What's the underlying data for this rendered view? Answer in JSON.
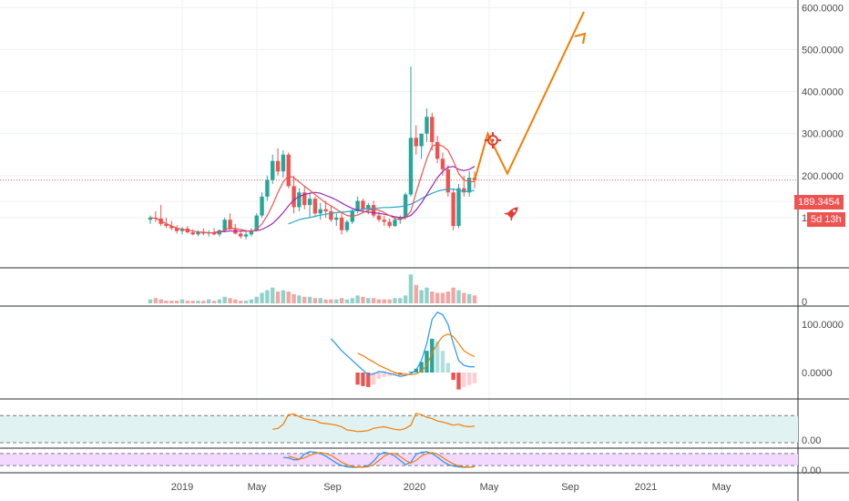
{
  "chart_data": {
    "type": "candlestick",
    "price_scale": {
      "ticks": [
        "100.0000",
        "200.0000",
        "300.0000",
        "400.0000",
        "500.0000",
        "600.0000"
      ],
      "values": [
        100,
        200,
        300,
        400,
        500,
        600
      ],
      "ylim": [
        0,
        650
      ]
    },
    "last_price": {
      "label": "189.3454",
      "value": 189.3454,
      "countdown": "5d 13h",
      "color": "#ef5350"
    },
    "x_ticks": [
      "2019",
      "May",
      "Sep",
      "2020",
      "May",
      "Sep",
      "2021",
      "May"
    ],
    "candles": [
      [
        95,
        105,
        85,
        100
      ],
      [
        100,
        115,
        90,
        98
      ],
      [
        98,
        130,
        80,
        85
      ],
      [
        85,
        100,
        75,
        80
      ],
      [
        80,
        92,
        70,
        75
      ],
      [
        75,
        82,
        62,
        68
      ],
      [
        68,
        78,
        60,
        74
      ],
      [
        74,
        80,
        62,
        65
      ],
      [
        65,
        72,
        58,
        60
      ],
      [
        60,
        70,
        56,
        66
      ],
      [
        66,
        74,
        58,
        62
      ],
      [
        62,
        70,
        55,
        65
      ],
      [
        65,
        75,
        58,
        60
      ],
      [
        60,
        72,
        55,
        70
      ],
      [
        70,
        100,
        65,
        95
      ],
      [
        95,
        110,
        70,
        72
      ],
      [
        72,
        85,
        60,
        62
      ],
      [
        62,
        70,
        50,
        55
      ],
      [
        55,
        68,
        48,
        60
      ],
      [
        60,
        75,
        55,
        70
      ],
      [
        70,
        110,
        68,
        105
      ],
      [
        105,
        160,
        100,
        150
      ],
      [
        150,
        200,
        140,
        190
      ],
      [
        190,
        250,
        180,
        235
      ],
      [
        235,
        265,
        200,
        210
      ],
      [
        210,
        260,
        195,
        250
      ],
      [
        250,
        255,
        170,
        175
      ],
      [
        175,
        200,
        110,
        125
      ],
      [
        125,
        170,
        115,
        160
      ],
      [
        160,
        175,
        120,
        130
      ],
      [
        130,
        160,
        100,
        145
      ],
      [
        145,
        150,
        105,
        110
      ],
      [
        110,
        135,
        95,
        120
      ],
      [
        120,
        140,
        100,
        115
      ],
      [
        115,
        128,
        90,
        95
      ],
      [
        95,
        110,
        80,
        100
      ],
      [
        100,
        112,
        60,
        70
      ],
      [
        70,
        95,
        65,
        90
      ],
      [
        90,
        120,
        85,
        115
      ],
      [
        115,
        150,
        110,
        140
      ],
      [
        140,
        145,
        115,
        120
      ],
      [
        120,
        135,
        108,
        130
      ],
      [
        130,
        140,
        100,
        105
      ],
      [
        105,
        115,
        90,
        95
      ],
      [
        95,
        105,
        80,
        90
      ],
      [
        90,
        98,
        75,
        80
      ],
      [
        80,
        100,
        78,
        95
      ],
      [
        95,
        105,
        85,
        100
      ],
      [
        100,
        160,
        95,
        155
      ],
      [
        155,
        460,
        150,
        290
      ],
      [
        290,
        320,
        250,
        270
      ],
      [
        270,
        300,
        240,
        300
      ],
      [
        300,
        360,
        280,
        340
      ],
      [
        340,
        350,
        260,
        280
      ],
      [
        280,
        295,
        230,
        240
      ],
      [
        240,
        255,
        200,
        215
      ],
      [
        215,
        225,
        150,
        160
      ],
      [
        160,
        170,
        70,
        80
      ],
      [
        80,
        180,
        75,
        170
      ],
      [
        170,
        200,
        150,
        160
      ],
      [
        160,
        210,
        150,
        195
      ],
      [
        195,
        210,
        170,
        189
      ]
    ],
    "ma_red": [
      100,
      98,
      92,
      86,
      80,
      75,
      72,
      70,
      68,
      66,
      65,
      64,
      64,
      65,
      70,
      75,
      74,
      72,
      69,
      67,
      72,
      85,
      105,
      130,
      160,
      185,
      200,
      195,
      185,
      175,
      165,
      155,
      145,
      135,
      128,
      120,
      112,
      105,
      103,
      106,
      112,
      118,
      120,
      118,
      112,
      105,
      98,
      95,
      100,
      115,
      160,
      200,
      240,
      270,
      275,
      270,
      260,
      235,
      205,
      190,
      185,
      186
    ],
    "ma_purple": [
      null,
      null,
      null,
      null,
      null,
      null,
      null,
      null,
      null,
      null,
      null,
      null,
      65,
      66,
      67,
      68,
      68,
      68,
      68,
      68,
      69,
      72,
      78,
      86,
      98,
      112,
      128,
      142,
      150,
      155,
      158,
      160,
      158,
      153,
      148,
      142,
      135,
      128,
      122,
      118,
      115,
      113,
      112,
      110,
      108,
      105,
      102,
      100,
      101,
      105,
      118,
      135,
      155,
      175,
      195,
      210,
      220,
      222,
      215,
      212,
      215,
      222
    ],
    "ma_teal": [
      null,
      null,
      null,
      null,
      null,
      null,
      null,
      null,
      null,
      null,
      null,
      null,
      null,
      null,
      null,
      null,
      null,
      null,
      null,
      null,
      null,
      null,
      null,
      null,
      null,
      null,
      85,
      90,
      95,
      98,
      100,
      103,
      106,
      108,
      110,
      112,
      113,
      114,
      116,
      118,
      120,
      121,
      122,
      123,
      124,
      124,
      125,
      126,
      128,
      132,
      138,
      145,
      152,
      158,
      163,
      166,
      168,
      168,
      165,
      162,
      162,
      165
    ],
    "projection": [
      [
        0,
        189
      ],
      [
        0.12,
        300
      ],
      [
        0.3,
        205
      ],
      [
        1,
        590
      ]
    ],
    "volume": {
      "zero_label": "0",
      "values": [
        3,
        4,
        3,
        2,
        2,
        2,
        3,
        2,
        2,
        2,
        2,
        3,
        2,
        3,
        5,
        4,
        3,
        2,
        2,
        3,
        5,
        8,
        10,
        12,
        9,
        10,
        9,
        7,
        6,
        5,
        5,
        4,
        4,
        3,
        3,
        3,
        4,
        3,
        4,
        6,
        5,
        4,
        4,
        3,
        3,
        3,
        4,
        4,
        6,
        22,
        14,
        10,
        12,
        9,
        8,
        8,
        9,
        12,
        10,
        8,
        7,
        6
      ]
    },
    "macd": {
      "labels": [
        "100.0000",
        "0.0000"
      ],
      "values": [
        100,
        0
      ],
      "macd_line": [
        null,
        null,
        null,
        null,
        null,
        null,
        null,
        null,
        null,
        null,
        null,
        null,
        null,
        null,
        null,
        null,
        null,
        null,
        null,
        null,
        null,
        null,
        null,
        null,
        null,
        null,
        null,
        null,
        null,
        null,
        null,
        null,
        null,
        null,
        70,
        58,
        45,
        35,
        25,
        15,
        5,
        -5,
        -3,
        2,
        1,
        -2,
        -5,
        -8,
        -6,
        -2,
        5,
        25,
        60,
        110,
        125,
        120,
        100,
        60,
        25,
        15,
        12,
        12
      ],
      "signal_line": [
        null,
        null,
        null,
        null,
        null,
        null,
        null,
        null,
        null,
        null,
        null,
        null,
        null,
        null,
        null,
        null,
        null,
        null,
        null,
        null,
        null,
        null,
        null,
        null,
        null,
        null,
        null,
        null,
        null,
        null,
        null,
        null,
        null,
        null,
        null,
        null,
        null,
        null,
        null,
        40,
        35,
        28,
        22,
        15,
        10,
        5,
        0,
        -3,
        -4,
        -4,
        -3,
        3,
        15,
        40,
        60,
        75,
        80,
        75,
        60,
        45,
        38,
        33
      ],
      "histogram": [
        null,
        null,
        null,
        null,
        null,
        null,
        null,
        null,
        null,
        null,
        null,
        null,
        null,
        null,
        null,
        null,
        null,
        null,
        null,
        null,
        null,
        null,
        null,
        null,
        null,
        null,
        null,
        null,
        null,
        null,
        null,
        null,
        null,
        null,
        null,
        null,
        null,
        null,
        null,
        -25,
        -28,
        -30,
        -25,
        -13,
        -9,
        -7,
        -5,
        -5,
        -2,
        2,
        8,
        22,
        45,
        70,
        65,
        45,
        20,
        -15,
        -35,
        -30,
        -26,
        -22
      ]
    },
    "rsi": {
      "label": "0.00",
      "values": [
        null,
        null,
        null,
        null,
        null,
        null,
        null,
        null,
        null,
        null,
        null,
        null,
        null,
        null,
        null,
        null,
        null,
        null,
        null,
        null,
        null,
        null,
        null,
        42,
        45,
        58,
        88,
        90,
        82,
        75,
        72,
        70,
        62,
        60,
        58,
        55,
        50,
        40,
        38,
        35,
        36,
        38,
        45,
        48,
        50,
        46,
        42,
        40,
        45,
        55,
        92,
        88,
        80,
        76,
        68,
        65,
        60,
        55,
        58,
        52,
        50,
        52
      ]
    },
    "stoch": {
      "label": "0.00",
      "k": [
        null,
        null,
        null,
        null,
        null,
        null,
        null,
        null,
        null,
        null,
        null,
        null,
        null,
        null,
        null,
        null,
        null,
        null,
        null,
        null,
        null,
        null,
        null,
        null,
        null,
        62,
        60,
        48,
        50,
        82,
        95,
        92,
        85,
        70,
        50,
        30,
        15,
        8,
        5,
        5,
        8,
        15,
        40,
        78,
        92,
        85,
        70,
        45,
        20,
        35,
        80,
        92,
        95,
        85,
        65,
        40,
        22,
        12,
        8,
        5,
        6,
        10
      ],
      "d": [
        null,
        null,
        null,
        null,
        null,
        null,
        null,
        null,
        null,
        null,
        null,
        null,
        null,
        null,
        null,
        null,
        null,
        null,
        null,
        null,
        null,
        null,
        null,
        null,
        null,
        null,
        70,
        60,
        52,
        60,
        75,
        85,
        90,
        85,
        75,
        55,
        35,
        20,
        10,
        6,
        6,
        9,
        20,
        45,
        70,
        85,
        85,
        68,
        45,
        30,
        45,
        70,
        85,
        90,
        82,
        62,
        42,
        25,
        14,
        8,
        6,
        8
      ]
    }
  },
  "colors": {
    "up": "#26a69a",
    "down": "#ef5350",
    "ma_red": "#ef5350",
    "ma_purple": "#9c27b0",
    "ma_teal": "#26a6c6",
    "projection": "#f57c00",
    "macd": "#2196f3",
    "signal": "#f57c00",
    "rsi": "#f57c00",
    "rsi_band": "#e0f2f1",
    "stoch_band": "#f3d9ff"
  },
  "icons": {
    "target": "crosshair-target-icon",
    "rocket": "rocket-icon"
  }
}
